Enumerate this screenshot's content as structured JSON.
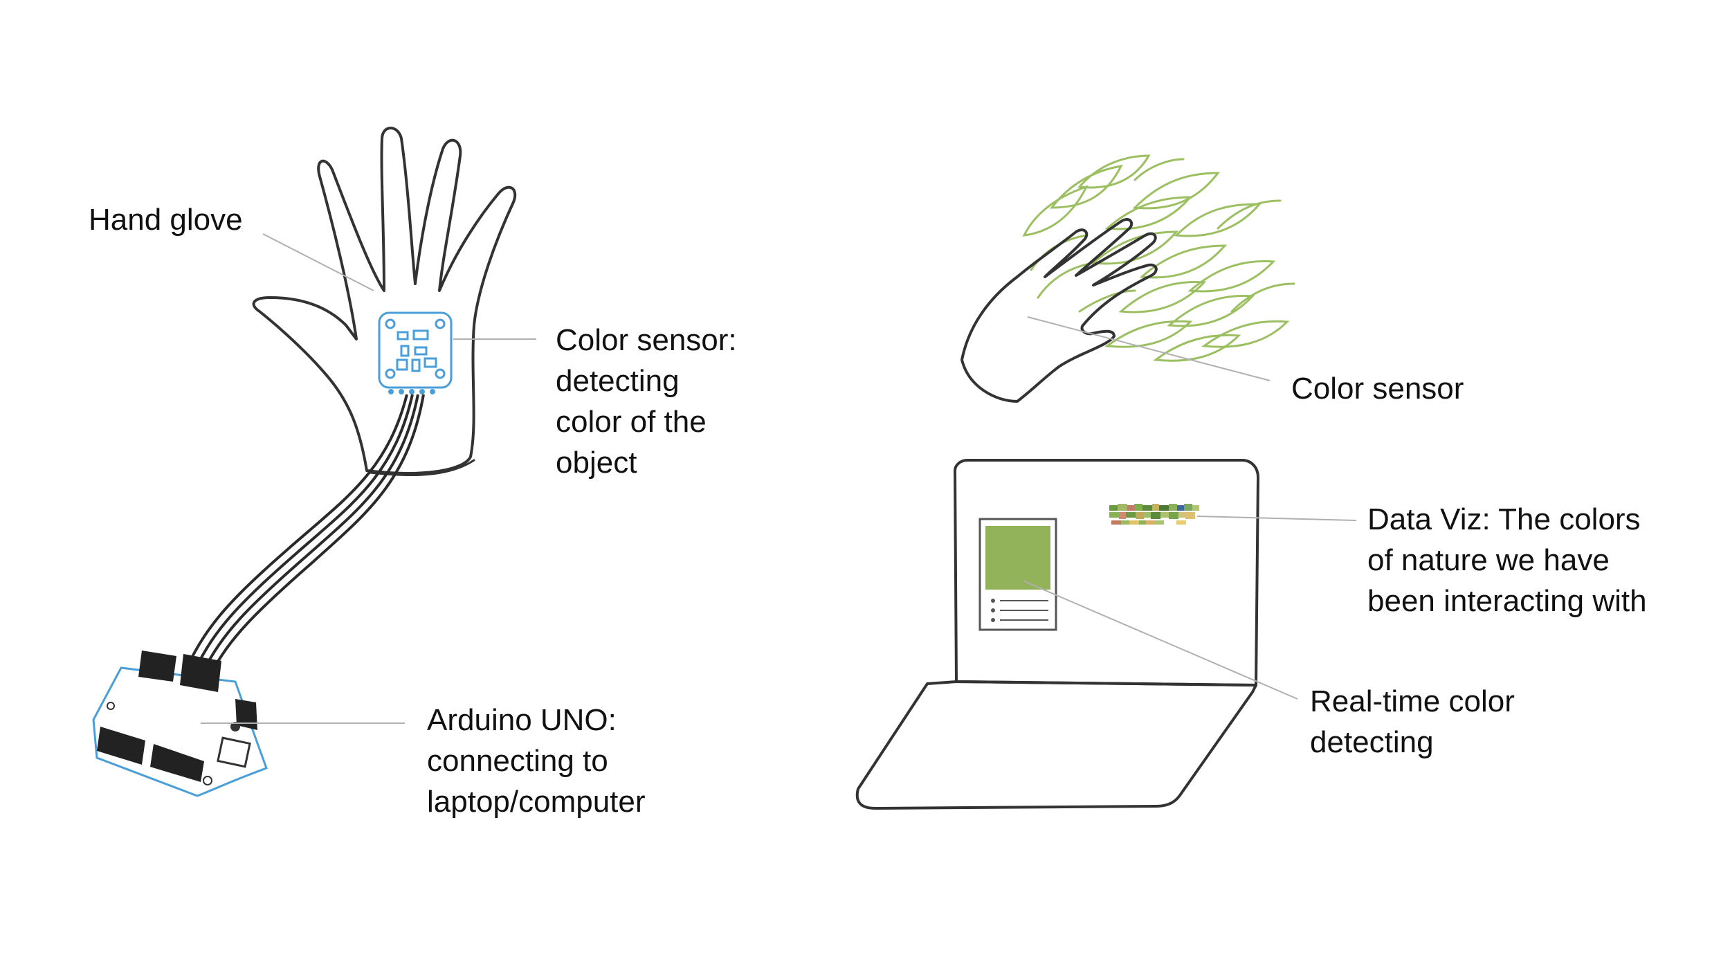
{
  "labels": {
    "hand_glove": "Hand glove",
    "color_sensor_left": [
      "Color sensor:",
      "detecting",
      "color of the",
      "object"
    ],
    "arduino": [
      "Arduino UNO:",
      "connecting to",
      "laptop/computer"
    ],
    "color_sensor_right": "Color sensor",
    "data_viz": [
      "Data Viz: The colors",
      "of nature we have",
      "been interacting with"
    ],
    "realtime": [
      "Real-time color",
      "detecting"
    ]
  },
  "colors": {
    "stroke": "#333333",
    "leader_line": "#b0b0b0",
    "sensor_blue": "#4a9fd8",
    "leaf_green": "#9cbf62",
    "swatch_green": "#93b35a",
    "text": "#111111"
  },
  "icons": [
    "hand-icon",
    "color-sensor-board-icon",
    "arduino-board-icon",
    "leaves-icon",
    "laptop-icon",
    "color-swatch-icon"
  ]
}
